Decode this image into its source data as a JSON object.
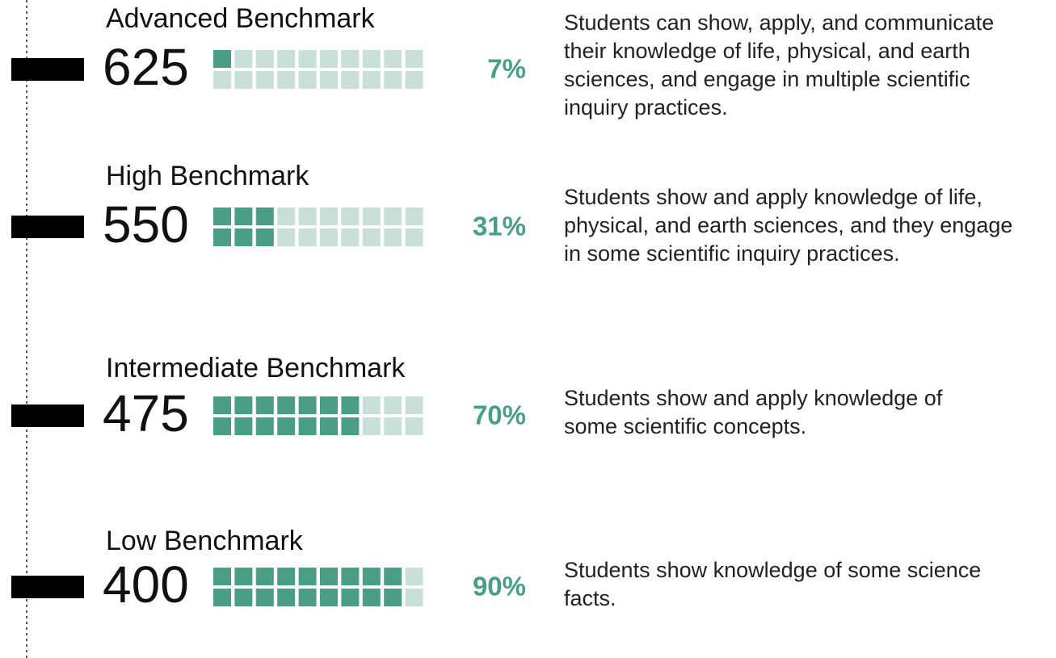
{
  "chart_data": {
    "type": "waffle",
    "categories": [
      "Advanced Benchmark",
      "High Benchmark",
      "Intermediate Benchmark",
      "Low Benchmark"
    ],
    "scores": [
      "625",
      "550",
      "475",
      "400"
    ],
    "values": [
      7,
      31,
      70,
      90
    ],
    "value_labels": [
      "7%",
      "31%",
      "70%",
      "90%"
    ],
    "color": "#4a9e86",
    "empty_color": "#c9e0d8",
    "descriptions": [
      [
        "Students can show, apply, and communicate",
        "their knowledge of life, physical, and earth",
        "sciences, and engage in multiple scientific",
        "inquiry practices."
      ],
      [
        "Students show and apply knowledge of life,",
        "physical, and earth sciences, and they engage",
        "in some scientific inquiry practices."
      ],
      [
        "Students show and apply knowledge of",
        "some scientific concepts."
      ],
      [
        "Students show knowledge of some science",
        "facts."
      ]
    ]
  }
}
